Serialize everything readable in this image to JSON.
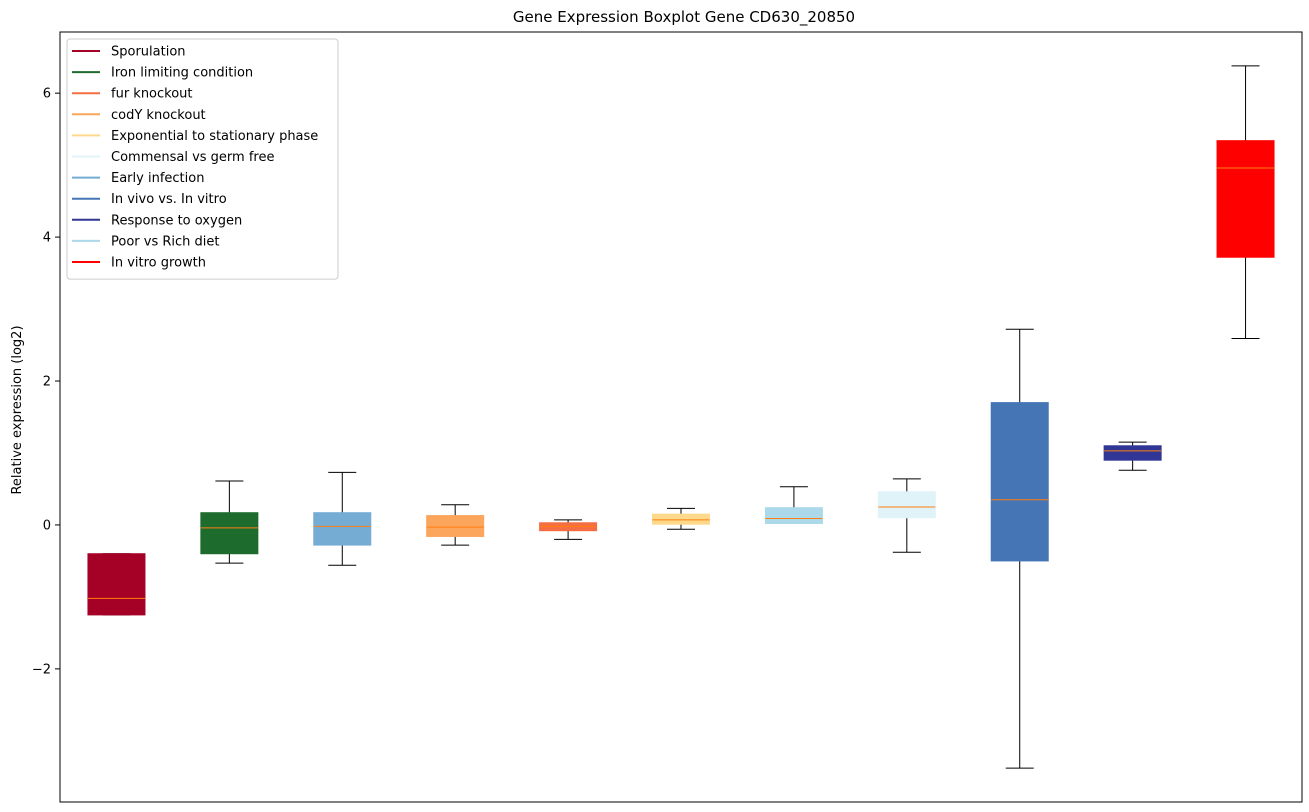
{
  "chart_data": {
    "type": "boxplot",
    "title": "Gene Expression Boxplot Gene CD630_20850",
    "xlabel": "",
    "ylabel": "Relative expression (log2)",
    "ylim": [
      -3.85,
      6.85
    ],
    "yticks": [
      -2,
      0,
      2,
      4,
      6
    ],
    "ytick_labels": [
      "−2",
      "0",
      "2",
      "4",
      "6"
    ],
    "grid": false,
    "legend_position": "top-left",
    "boxes": [
      {
        "name": "Sporulation",
        "color": "#a50026",
        "whisker_low": -1.25,
        "q1": -1.25,
        "median": -1.02,
        "q3": -0.4,
        "whisker_high": -0.4
      },
      {
        "name": "Iron limiting condition",
        "color": "#1e6b2e",
        "whisker_low": -0.53,
        "q1": -0.4,
        "median": -0.04,
        "q3": 0.17,
        "whisker_high": 0.61
      },
      {
        "name": "Early infection",
        "color": "#74acd4",
        "whisker_low": -0.56,
        "q1": -0.28,
        "median": -0.02,
        "q3": 0.17,
        "whisker_high": 0.73
      },
      {
        "name": "codY knockout",
        "color": "#fca55c",
        "whisker_low": -0.28,
        "q1": -0.16,
        "median": -0.03,
        "q3": 0.13,
        "whisker_high": 0.28
      },
      {
        "name": "fur knockout",
        "color": "#f46d43",
        "whisker_low": -0.2,
        "q1": -0.08,
        "median": -0.02,
        "q3": 0.03,
        "whisker_high": 0.07
      },
      {
        "name": "Exponential to stationary phase",
        "color": "#fed98b",
        "whisker_low": -0.06,
        "q1": 0.01,
        "median": 0.07,
        "q3": 0.15,
        "whisker_high": 0.23
      },
      {
        "name": "Poor vs Rich diet",
        "color": "#abd9e9",
        "whisker_low": 0.02,
        "q1": 0.02,
        "median": 0.09,
        "q3": 0.24,
        "whisker_high": 0.53
      },
      {
        "name": "Commensal vs germ free",
        "color": "#e0f3f8",
        "whisker_low": -0.38,
        "q1": 0.1,
        "median": 0.25,
        "q3": 0.46,
        "whisker_high": 0.64
      },
      {
        "name": "In vivo vs. In vitro",
        "color": "#4575b4",
        "whisker_low": -3.38,
        "q1": -0.5,
        "median": 0.35,
        "q3": 1.7,
        "whisker_high": 2.72
      },
      {
        "name": "Response to oxygen",
        "color": "#313695",
        "whisker_low": 0.76,
        "q1": 0.9,
        "median": 1.03,
        "q3": 1.1,
        "whisker_high": 1.15
      },
      {
        "name": "In vitro growth",
        "color": "#ff0000",
        "whisker_low": 2.59,
        "q1": 3.72,
        "median": 4.96,
        "q3": 5.34,
        "whisker_high": 6.38
      }
    ],
    "legend": [
      {
        "label": "Sporulation",
        "color": "#a50026"
      },
      {
        "label": "Iron limiting condition",
        "color": "#1e6b2e"
      },
      {
        "label": "fur knockout",
        "color": "#f46d43"
      },
      {
        "label": "codY knockout",
        "color": "#fca55c"
      },
      {
        "label": "Exponential to stationary phase",
        "color": "#fed98b"
      },
      {
        "label": "Commensal vs germ free",
        "color": "#e0f3f8"
      },
      {
        "label": "Early infection",
        "color": "#74acd4"
      },
      {
        "label": "In vivo vs. In vitro",
        "color": "#4575b4"
      },
      {
        "label": "Response to oxygen",
        "color": "#313695"
      },
      {
        "label": "Poor vs Rich diet",
        "color": "#abd9e9"
      },
      {
        "label": "In vitro growth",
        "color": "#ff0000"
      }
    ],
    "median_color": "#ff7f0e",
    "whisker_color": "#000000"
  }
}
